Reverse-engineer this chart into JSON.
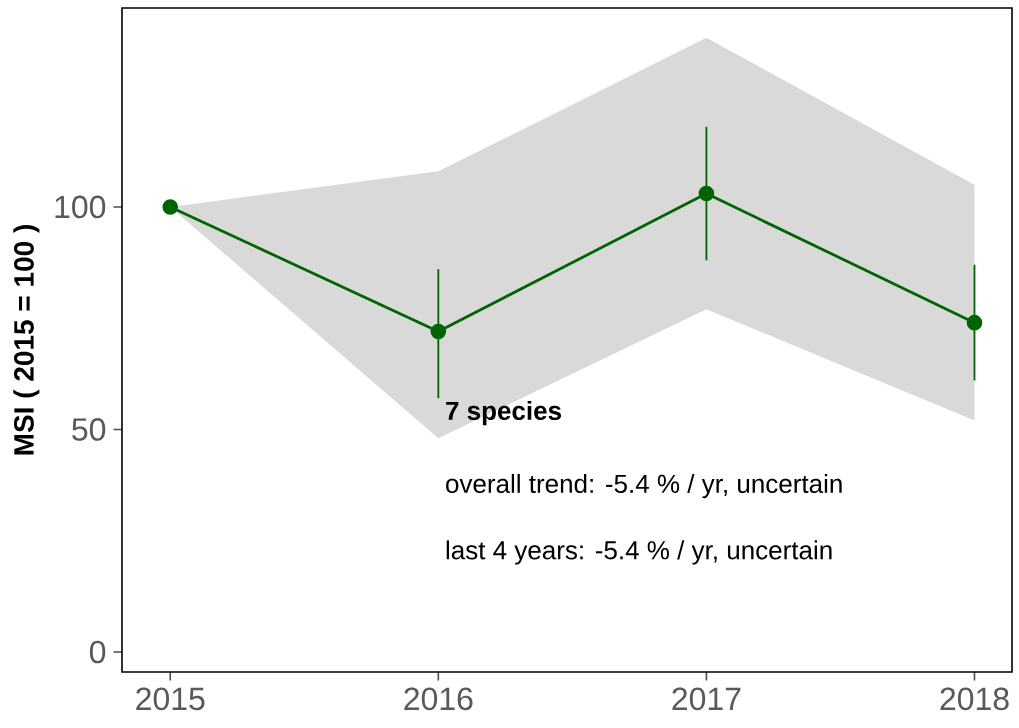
{
  "chart_data": {
    "type": "line",
    "ylabel": "MSI ( 2015 = 100 )",
    "x": [
      2015,
      2016,
      2017,
      2018
    ],
    "xlim": [
      2014.82,
      2018.14
    ],
    "xticks": [
      2015,
      2016,
      2017,
      2018
    ],
    "ylim": [
      -4.5,
      144.7
    ],
    "yticks": [
      0,
      50,
      100
    ],
    "series": [
      {
        "color": "#006400",
        "values": [
          100,
          72,
          103,
          74
        ],
        "errors": [
          null,
          [
            57,
            86
          ],
          [
            88,
            118
          ],
          [
            61,
            87
          ]
        ],
        "lower": [
          100,
          48,
          77,
          52
        ],
        "upper": [
          100,
          108,
          138,
          105
        ]
      }
    ],
    "marker": "circle",
    "line_style": "solid",
    "grid": false,
    "annotations": [
      "7 species",
      "overall trend: -5.4 % / yr, uncertain",
      "last 4 years: -5.4 % / yr, uncertain"
    ]
  }
}
